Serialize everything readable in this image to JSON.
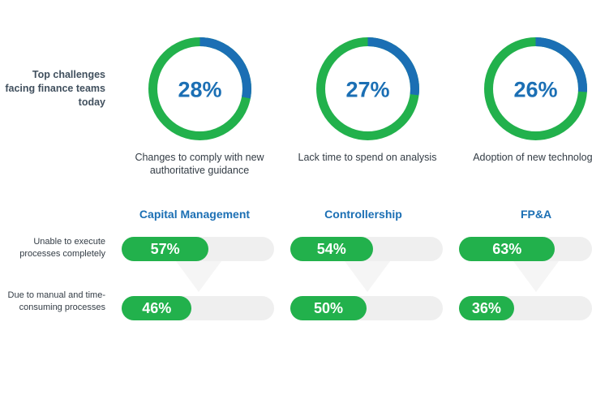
{
  "heading": "Top challenges facing finance teams today",
  "colors": {
    "blue": "#1b6fb4",
    "green": "#22b14c",
    "track": "#efefef",
    "text": "#333c45"
  },
  "chart_data": [
    {
      "type": "pie",
      "title": "Top challenges facing finance teams today",
      "slices": [
        {
          "label": "Changes to comply with new authoritative guidance",
          "value": 28,
          "display": "28%"
        },
        {
          "label": "Lack time to spend on analysis",
          "value": 27,
          "display": "27%"
        },
        {
          "label": "Adoption of new technology",
          "value": 26,
          "display": "26%"
        }
      ]
    },
    {
      "type": "bar",
      "categories": [
        "Capital Management",
        "Controllership",
        "FP&A"
      ],
      "row_labels": [
        "Unable to execute processes completely",
        "Due to manual and time-consuming processes"
      ],
      "series": [
        {
          "name": "Unable to execute processes completely",
          "values": [
            57,
            54,
            63
          ],
          "display": [
            "57%",
            "54%",
            "63%"
          ]
        },
        {
          "name": "Due to manual and time-consuming processes",
          "values": [
            46,
            50,
            36
          ],
          "display": [
            "46%",
            "50%",
            "36%"
          ]
        }
      ],
      "ylim": [
        0,
        100
      ]
    }
  ]
}
